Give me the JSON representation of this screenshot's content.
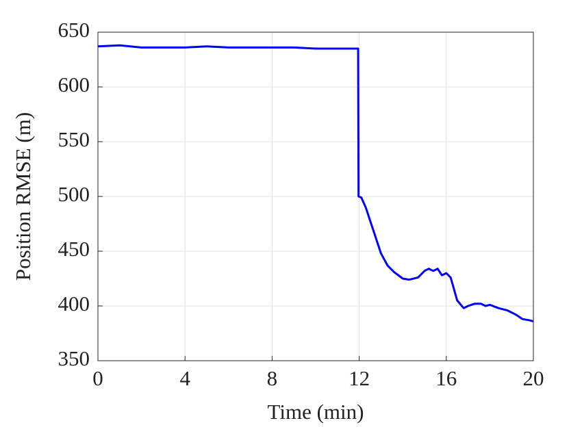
{
  "chart_data": {
    "type": "line",
    "xlabel": "Time (min)",
    "ylabel": "Position RMSE (m)",
    "x": [
      0,
      1,
      2,
      3,
      4,
      5,
      6,
      7,
      8,
      9,
      10,
      11,
      11.95,
      11.97,
      12.1,
      12.3,
      12.6,
      13.0,
      13.3,
      13.6,
      14.0,
      14.3,
      14.7,
      15.0,
      15.2,
      15.4,
      15.6,
      15.8,
      16.0,
      16.2,
      16.5,
      16.8,
      17.0,
      17.3,
      17.6,
      17.8,
      18.0,
      18.4,
      18.8,
      19.2,
      19.5,
      19.8,
      20
    ],
    "values": [
      637,
      638,
      636,
      636,
      636,
      637,
      636,
      636,
      636,
      636,
      635,
      635,
      635,
      500,
      499,
      490,
      472,
      448,
      437,
      431,
      425,
      424,
      426,
      432,
      434,
      432,
      434,
      428,
      430,
      426,
      405,
      398,
      400,
      402,
      402,
      400,
      401,
      398,
      396,
      392,
      388,
      387,
      386
    ],
    "color": "#0000ff",
    "xlim": [
      0,
      20
    ],
    "xticks": [
      0,
      4,
      8,
      12,
      16,
      20
    ],
    "ylim": [
      350,
      650
    ],
    "yticks": [
      350,
      400,
      450,
      500,
      550,
      600,
      650
    ],
    "grid": true
  }
}
